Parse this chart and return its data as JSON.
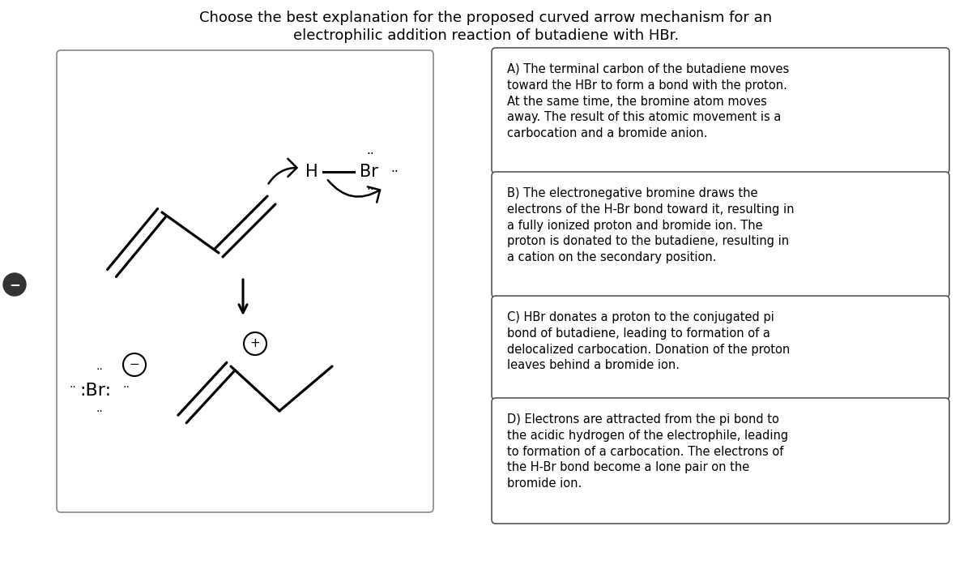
{
  "title_line1": "Choose the best explanation for the proposed curved arrow mechanism for an",
  "title_line2": "electrophilic addition reaction of butadiene with HBr.",
  "title_fontsize": 13,
  "bg_color": "#ffffff",
  "answer_A": "A) The terminal carbon of the butadiene moves\ntoward the HBr to form a bond with the proton.\nAt the same time, the bromine atom moves\naway. The result of this atomic movement is a\ncarbocation and a bromide anion.",
  "answer_B": "B) The electronegative bromine draws the\nelectrons of the H-Br bond toward it, resulting in\na fully ionized proton and bromide ion. The\nproton is donated to the butadiene, resulting in\na cation on the secondary position.",
  "answer_C": "C) HBr donates a proton to the conjugated pi\nbond of butadiene, leading to formation of a\ndelocalized carbocation. Donation of the proton\nleaves behind a bromide ion.",
  "answer_D": "D) Electrons are attracted from the pi bond to\nthe acidic hydrogen of the electrophile, leading\nto formation of a carbocation. The electrons of\nthe H-Br bond become a lone pair on the\nbromide ion.",
  "text_fontsize": 10.5
}
